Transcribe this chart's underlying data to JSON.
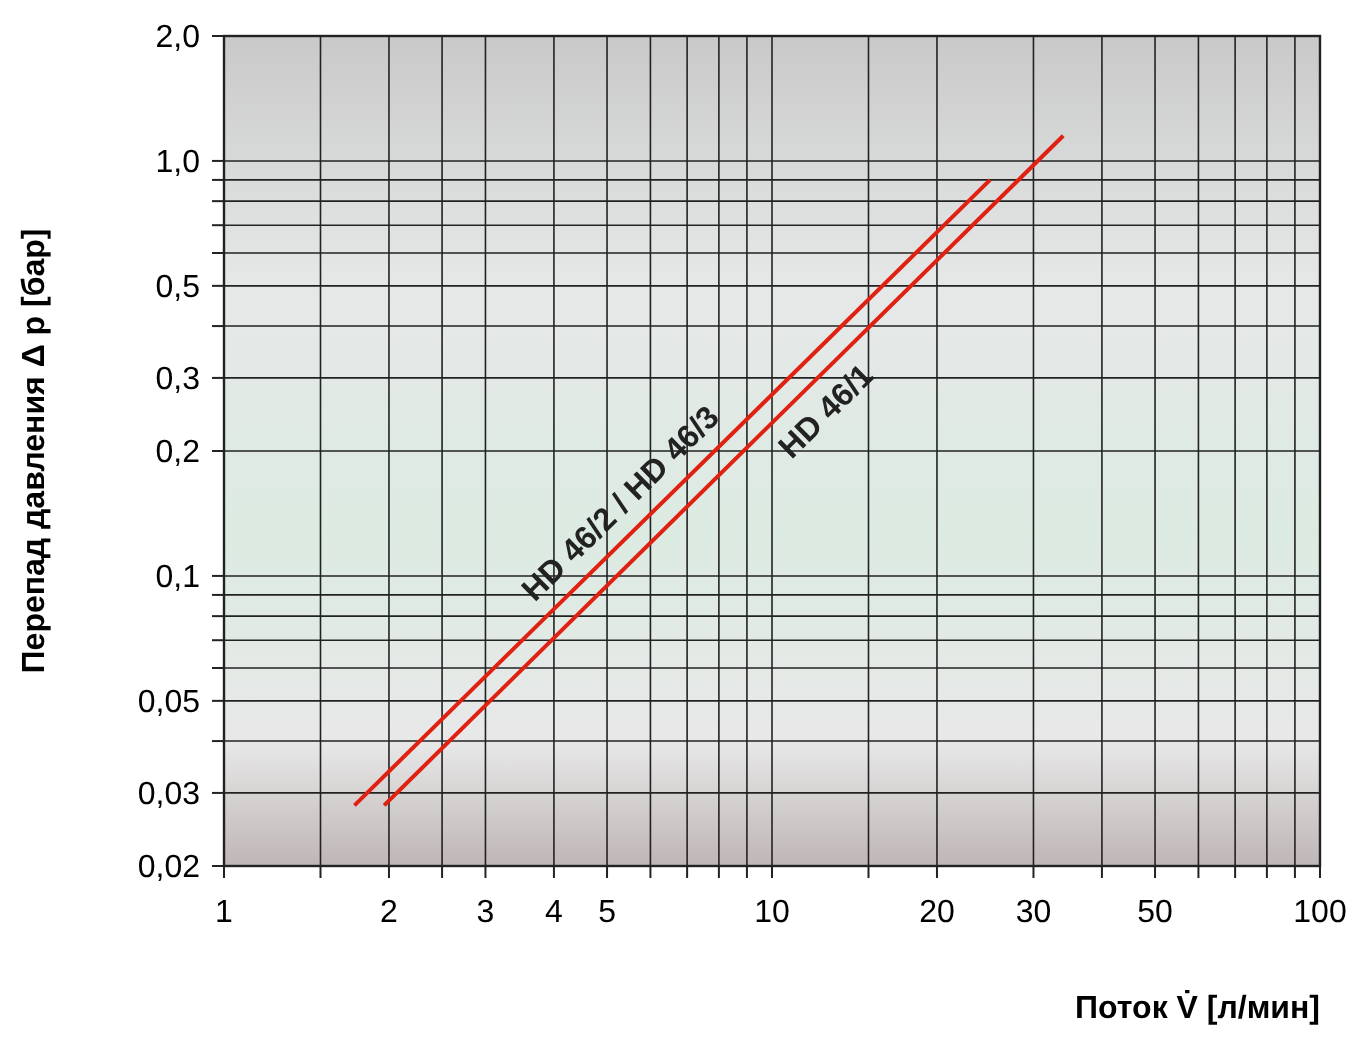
{
  "chart_data": {
    "type": "line",
    "xlabel": "Поток V̇ [л/мин]",
    "ylabel": "Перепад давления Δ p [бар]",
    "log": "xy",
    "grid": true,
    "line_style": "solid",
    "xlim": [
      1,
      100
    ],
    "ylim": [
      0.02,
      2.0
    ],
    "xticks": [
      1,
      {
        "value": 1.5,
        "label": null
      },
      2,
      {
        "value": 2.5,
        "label": null
      },
      3,
      4,
      5,
      {
        "value": 6,
        "label": null
      },
      {
        "value": 7,
        "label": null
      },
      {
        "value": 8,
        "label": null
      },
      {
        "value": 9,
        "label": null
      },
      10,
      {
        "value": 15,
        "label": null
      },
      20,
      30,
      {
        "value": 40,
        "label": null
      },
      50,
      {
        "value": 60,
        "label": null
      },
      {
        "value": 70,
        "label": null
      },
      {
        "value": 80,
        "label": null
      },
      {
        "value": 90,
        "label": null
      },
      100
    ],
    "yticks": [
      {
        "value": 0.02,
        "label": "0,02"
      },
      {
        "value": 0.03,
        "label": "0,03"
      },
      {
        "value": 0.04,
        "label": null
      },
      {
        "value": 0.05,
        "label": "0,05"
      },
      {
        "value": 0.06,
        "label": null
      },
      {
        "value": 0.07,
        "label": null
      },
      {
        "value": 0.08,
        "label": null
      },
      {
        "value": 0.09,
        "label": null
      },
      {
        "value": 0.1,
        "label": "0,1"
      },
      {
        "value": 0.2,
        "label": "0,2"
      },
      {
        "value": 0.3,
        "label": "0,3"
      },
      {
        "value": 0.4,
        "label": null
      },
      {
        "value": 0.5,
        "label": "0,5"
      },
      {
        "value": 0.6,
        "label": null
      },
      {
        "value": 0.7,
        "label": null
      },
      {
        "value": 0.8,
        "label": null
      },
      {
        "value": 0.9,
        "label": null
      },
      {
        "value": 1.0,
        "label": "1,0"
      },
      {
        "value": 2.0,
        "label": "2,0"
      }
    ],
    "series": [
      {
        "name": "HD 46/2 / HD 46/3",
        "color": "#e02010",
        "x": [
          1.73,
          25
        ],
        "values": [
          0.028,
          0.9
        ]
      },
      {
        "name": "HD 46/1",
        "color": "#e02010",
        "x": [
          1.96,
          34
        ],
        "values": [
          0.028,
          1.15
        ]
      }
    ]
  }
}
